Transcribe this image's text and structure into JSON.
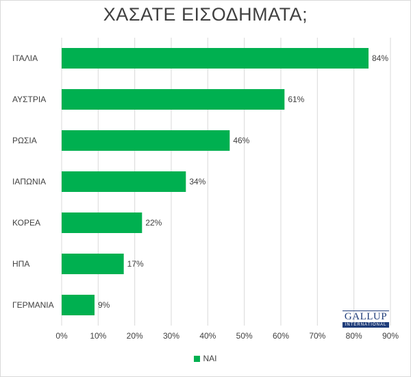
{
  "chart_data": {
    "type": "bar",
    "orientation": "horizontal",
    "title": "ΧΑΣΑΤΕ ΕΙΣΟΔΗΜΑΤΑ;",
    "categories": [
      "ΙΤΑΛΙΑ",
      "ΑΥΣΤΡΙΑ",
      "ΡΩΣΙΑ",
      "ΙΑΠΩΝΙΑ",
      "ΚΟΡΕΑ",
      "ΗΠΑ",
      "ΓΕΡΜΑΝΙΑ"
    ],
    "series": [
      {
        "name": "ΝΑΙ",
        "values": [
          84,
          61,
          46,
          34,
          22,
          17,
          9
        ],
        "color": "#00b050"
      }
    ],
    "data_labels": [
      "84%",
      "61%",
      "46%",
      "34%",
      "22%",
      "17%",
      "9%"
    ],
    "x_ticks": [
      "0%",
      "10%",
      "20%",
      "30%",
      "40%",
      "50%",
      "60%",
      "70%",
      "80%",
      "90%"
    ],
    "xlim": [
      0,
      90
    ],
    "grid": "vertical",
    "legend_position": "bottom"
  },
  "logo": {
    "main": "GALLUP",
    "sub": "INTERNATIONAL"
  }
}
